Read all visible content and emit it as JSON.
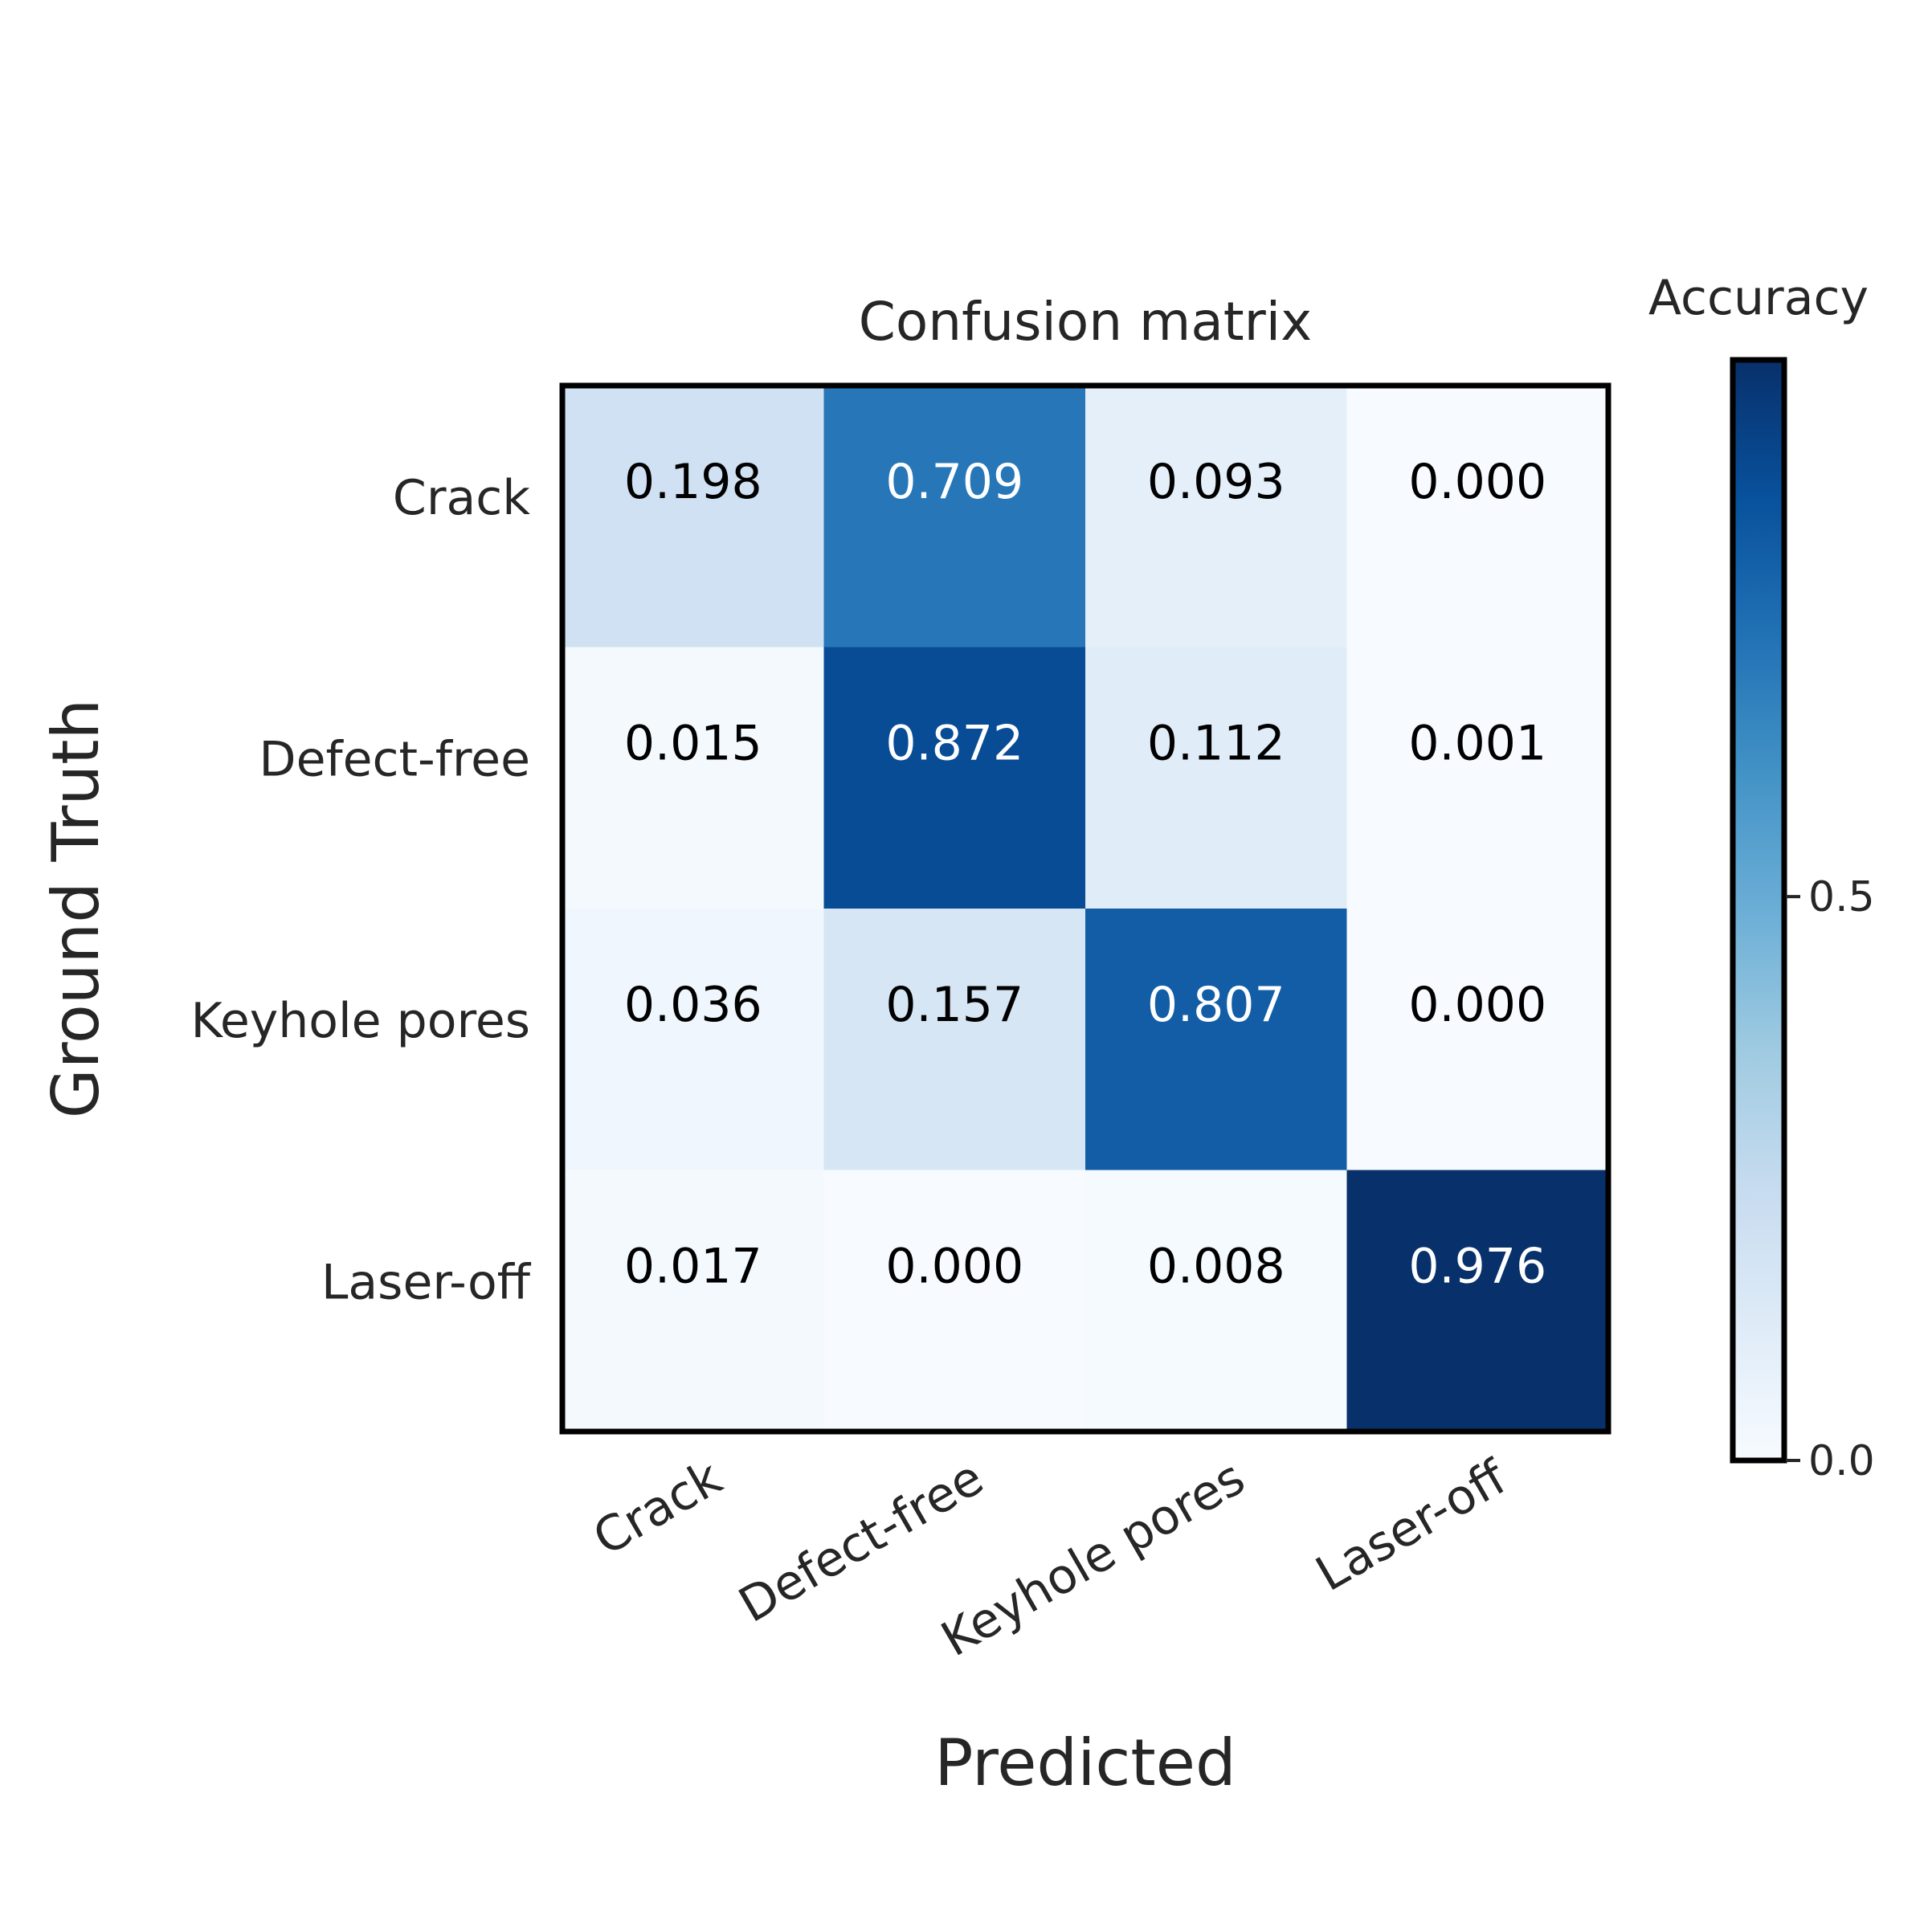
{
  "chart_data": {
    "type": "heatmap",
    "title": "Confusion matrix",
    "xlabel": "Predicted",
    "ylabel": "Ground Truth",
    "x_categories": [
      "Crack",
      "Defect-free",
      "Keyhole pores",
      "Laser-off"
    ],
    "y_categories": [
      "Crack",
      "Defect-free",
      "Keyhole pores",
      "Laser-off"
    ],
    "values": [
      [
        0.198,
        0.709,
        0.093,
        0.0
      ],
      [
        0.015,
        0.872,
        0.112,
        0.001
      ],
      [
        0.036,
        0.157,
        0.807,
        0.0
      ],
      [
        0.017,
        0.0,
        0.008,
        0.976
      ]
    ],
    "value_labels": [
      [
        "0.198",
        "0.709",
        "0.093",
        "0.000"
      ],
      [
        "0.015",
        "0.872",
        "0.112",
        "0.001"
      ],
      [
        "0.036",
        "0.157",
        "0.807",
        "0.000"
      ],
      [
        "0.017",
        "0.000",
        "0.008",
        "0.976"
      ]
    ],
    "colormap": "Blues",
    "colormap_stops": [
      "#f7fbff",
      "#deebf7",
      "#c6dbef",
      "#9ecae1",
      "#6baed6",
      "#4292c6",
      "#2171b5",
      "#08519c",
      "#08306b"
    ],
    "color_range": [
      0.0,
      0.976
    ],
    "colorbar": {
      "title": "Accuracy",
      "ticks": [
        0.0,
        0.5
      ],
      "tick_labels": [
        "0.0",
        "0.5"
      ]
    },
    "text_colors": {
      "dark": "#000000",
      "light": "#ffffff"
    },
    "grid": false
  }
}
